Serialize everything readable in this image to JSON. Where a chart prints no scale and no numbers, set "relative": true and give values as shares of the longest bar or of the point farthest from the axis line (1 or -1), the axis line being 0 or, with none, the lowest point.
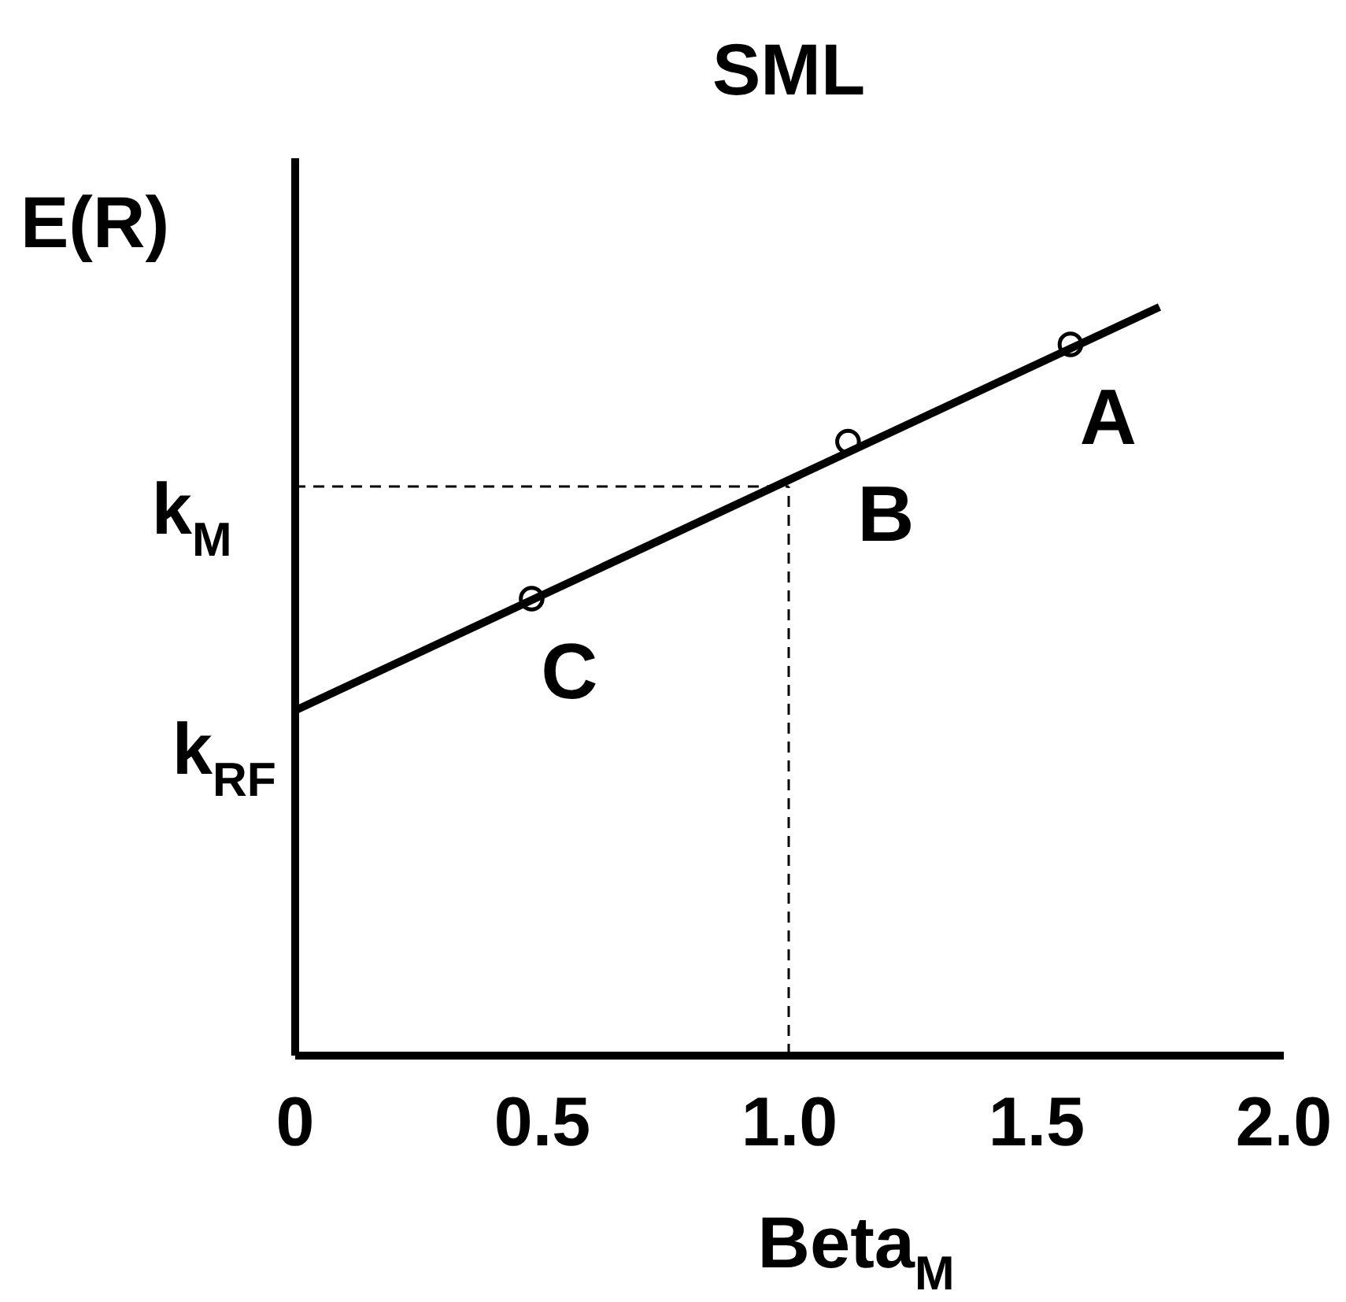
{
  "chart_data": {
    "type": "line",
    "title": "SML",
    "xlabel": "Beta$_{M}$",
    "ylabel": "E(R)",
    "relative": true,
    "xlim": [
      0,
      2.0
    ],
    "xticks": [
      0,
      0.5,
      {
        "value": 1,
        "label": "1.0"
      },
      1.5,
      {
        "value": 2,
        "label": "2.0"
      }
    ],
    "series": [
      {
        "type": "line",
        "color": "#000000",
        "x": [
          0,
          1.75
        ],
        "values": [
          0.46,
          1
        ]
      },
      {
        "type": "scatter",
        "color": "#000000",
        "marker": "circle",
        "x": [
          0.48,
          1.12,
          1.57
        ],
        "values": [
          0.61,
          0.82,
          0.95
        ]
      }
    ],
    "ref_lines": [
      {
        "axis": "y",
        "value": 0.76,
        "label": "k$_{M}$",
        "line_style": "dashed"
      },
      {
        "axis": "x",
        "value": 1,
        "line_style": "dashed"
      }
    ],
    "annotations": [
      {
        "text": "k$_{RF}$",
        "x": 0,
        "y": 0.46
      },
      {
        "text": "C",
        "x": 0.48,
        "y": 0.61
      },
      {
        "text": "B",
        "x": 1.12,
        "y": 0.82
      },
      {
        "text": "A",
        "x": 1.57,
        "y": 0.95
      }
    ],
    "grid": false
  }
}
